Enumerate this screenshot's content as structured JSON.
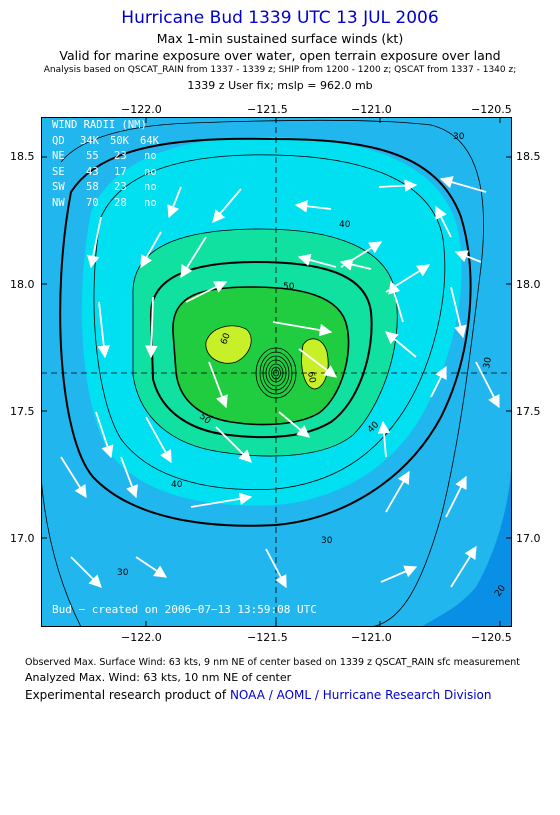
{
  "header": {
    "title": "Hurricane Bud 1339 UTC 13 JUL 2006",
    "line1": "Max 1-min sustained surface winds (kt)",
    "line2": "Valid for marine exposure over water, open terrain exposure over land",
    "line3": "Analysis based on  QSCAT_RAIN from 1337 - 1339 z;  SHIP from 1200 - 1200 z;  QSCAT from 1337 - 1340 z;",
    "line4": "1339 z User fix; mslp = 962.0 mb"
  },
  "axes": {
    "x_ticks": [
      "−122.0",
      "−121.5",
      "−121.0",
      "−120.5"
    ],
    "y_ticks": [
      "18.5",
      "18.0",
      "17.5",
      "17.0"
    ]
  },
  "wind_radii": {
    "title": "WIND RADII (NM)",
    "header": [
      "QD",
      "34K",
      "50K",
      "64K"
    ],
    "rows": [
      [
        "NE",
        "55",
        "23",
        "no"
      ],
      [
        "SE",
        "43",
        "17",
        "no"
      ],
      [
        "SW",
        "58",
        "23",
        "no"
      ],
      [
        "NW",
        "70",
        "28",
        "no"
      ]
    ]
  },
  "contour_labels": [
    "30",
    "40",
    "50",
    "60",
    "60",
    "50",
    "40",
    "40",
    "30",
    "30",
    "30",
    "20"
  ],
  "created_text": "Bud − created on 2006−07−13 13:59:08 UTC",
  "footer": {
    "observed": "Observed Max. Surface Wind: 63 kts, 9 nm NE of center based on 1339 z QSCAT_RAIN sfc measurement",
    "analyzed": "Analyzed Max. Wind: 63 kts, 10 nm NE of center",
    "product_prefix": "Experimental research product of",
    "product_link": "NOAA / AOML / Hurricane Research Division"
  },
  "colors": {
    "title": "#0000cc",
    "band_20": "#0a8fe6",
    "band_30": "#22b6ee",
    "band_40": "#00e0f0",
    "band_50": "#10e0a0",
    "band_60": "#20cc40",
    "band_max": "#c8f028",
    "vector": "#ffffff"
  }
}
